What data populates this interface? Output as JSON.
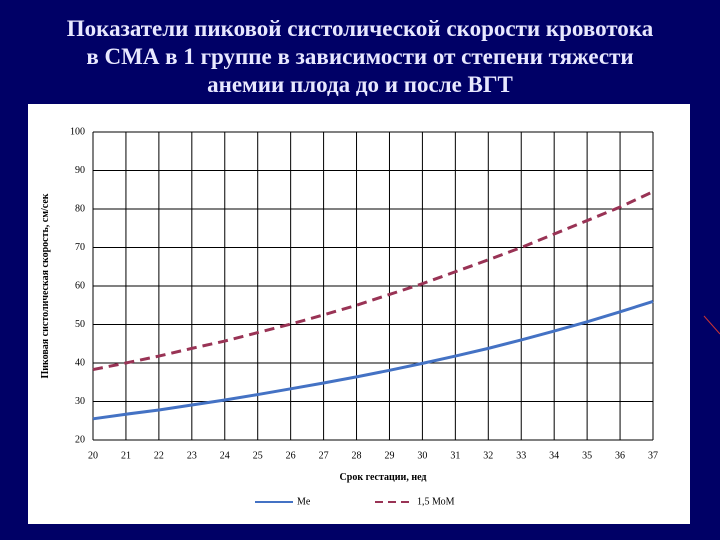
{
  "chart_data": {
    "type": "line",
    "title_lines": [
      "Показатели пиковой систолической скорости кровотока",
      "в СМА в 1 группе в зависимости от степени тяжести",
      "анемии плода до и после ВГТ"
    ],
    "x_label": "Срок гестации, нед",
    "y_label": "Пиковая систолическая скорость, см/сек",
    "x": [
      20,
      21,
      22,
      23,
      24,
      25,
      26,
      27,
      28,
      29,
      30,
      31,
      32,
      33,
      34,
      35,
      36,
      37
    ],
    "series": [
      {
        "name": "Me",
        "color": "#4472c4",
        "line_style": "solid",
        "values": [
          25.5,
          26.7,
          27.8,
          29.1,
          30.4,
          31.8,
          33.3,
          34.8,
          36.4,
          38.1,
          39.9,
          41.8,
          43.8,
          46.0,
          48.3,
          50.7,
          53.3,
          56.0
        ]
      },
      {
        "name": "1,5 МоМ",
        "color": "#993355",
        "line_style": "dashed",
        "values": [
          38.3,
          40.0,
          41.8,
          43.8,
          45.7,
          47.9,
          50.1,
          52.5,
          55.0,
          57.8,
          60.6,
          63.7,
          66.8,
          70.0,
          73.5,
          77.0,
          80.5,
          84.5
        ]
      }
    ],
    "xlim": [
      20,
      37
    ],
    "xticks": [
      20,
      21,
      22,
      23,
      24,
      25,
      26,
      27,
      28,
      29,
      30,
      31,
      32,
      33,
      34,
      35,
      36,
      37
    ],
    "ylim": [
      20,
      100
    ],
    "yticks": [
      20,
      30,
      40,
      50,
      60,
      70,
      80,
      90,
      100
    ],
    "grid": true,
    "legend": "bottom"
  }
}
